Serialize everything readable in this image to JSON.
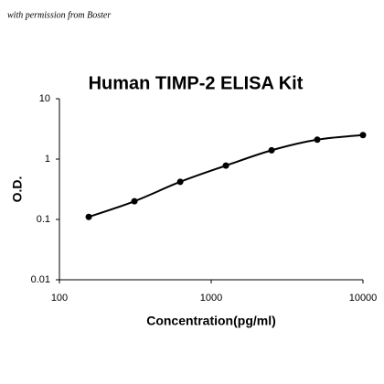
{
  "chart_data": {
    "type": "scatter",
    "title": "Human TIMP-2 ELISA Kit",
    "annotation": "with permission from Boster",
    "xlabel": "Concentration(pg/ml)",
    "ylabel": "O.D.",
    "xscale": "log",
    "yscale": "log",
    "grid": false,
    "line": true,
    "xlim": [
      100,
      10000
    ],
    "ylim": [
      0.01,
      10
    ],
    "xticks": [
      100,
      1000,
      10000
    ],
    "yticks": [
      0.01,
      0.1,
      1,
      10
    ],
    "series": [
      {
        "color": "#000000",
        "x": [
          156,
          312,
          625,
          1250,
          2500,
          5000,
          10000
        ],
        "values": [
          0.11,
          0.2,
          0.42,
          0.78,
          1.4,
          2.1,
          2.5
        ]
      }
    ]
  }
}
